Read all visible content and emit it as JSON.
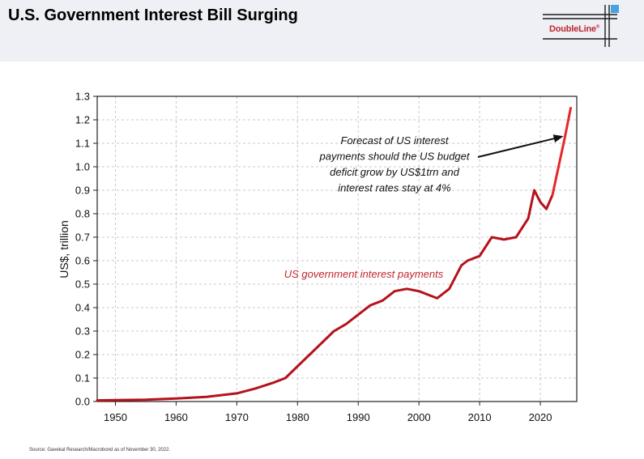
{
  "header": {
    "title": "U.S. Government Interest Bill Surging",
    "logo_text": "DoubleLine",
    "logo_mark": "®"
  },
  "footer": {
    "source": "Source: Gavekal Research/Macrobond as of November 30, 2022."
  },
  "colors": {
    "header_band": "#eef0f5",
    "series_line": "#b5121b",
    "forecast_line": "#e8262b",
    "logo_blue": "#4aa3df",
    "logo_red": "#c0262d",
    "grid": "#c8c8c8"
  },
  "chart_data": {
    "type": "line",
    "title": "",
    "xlabel": "",
    "ylabel": "US$, trillion",
    "xlim": [
      1947,
      2026
    ],
    "ylim": [
      0,
      1.3
    ],
    "grid": true,
    "x_ticks": [
      "1950",
      "1960",
      "1970",
      "1980",
      "1990",
      "2000",
      "2010",
      "2020"
    ],
    "y_ticks": [
      "0.0",
      "0.1",
      "0.2",
      "0.3",
      "0.4",
      "0.5",
      "0.6",
      "0.7",
      "0.8",
      "0.9",
      "1.0",
      "1.1",
      "1.2",
      "1.3"
    ],
    "series": [
      {
        "name": "US government interest payments",
        "x": [
          1947,
          1950,
          1955,
          1960,
          1965,
          1970,
          1973,
          1976,
          1978,
          1980,
          1982,
          1984,
          1986,
          1988,
          1990,
          1992,
          1994,
          1996,
          1998,
          2000,
          2002,
          2003,
          2005,
          2007,
          2008,
          2010,
          2012,
          2014,
          2016,
          2018,
          2019,
          2020,
          2021,
          2022
        ],
        "values": [
          0.005,
          0.006,
          0.008,
          0.013,
          0.02,
          0.035,
          0.055,
          0.08,
          0.1,
          0.15,
          0.2,
          0.25,
          0.3,
          0.33,
          0.37,
          0.41,
          0.43,
          0.47,
          0.48,
          0.47,
          0.45,
          0.44,
          0.48,
          0.58,
          0.6,
          0.62,
          0.7,
          0.69,
          0.7,
          0.78,
          0.9,
          0.85,
          0.82,
          0.88
        ]
      },
      {
        "name": "Forecast",
        "x": [
          2022,
          2023,
          2024,
          2025
        ],
        "values": [
          0.88,
          1.0,
          1.12,
          1.25
        ]
      }
    ],
    "annotations": [
      {
        "text_lines": [
          "Forecast of US interest",
          "payments should the US budget",
          "deficit grow by US$1trn and",
          "interest rates stay at 4%"
        ],
        "points_to": [
          2023.8,
          1.13
        ]
      },
      {
        "text": "US government interest payments"
      }
    ]
  }
}
